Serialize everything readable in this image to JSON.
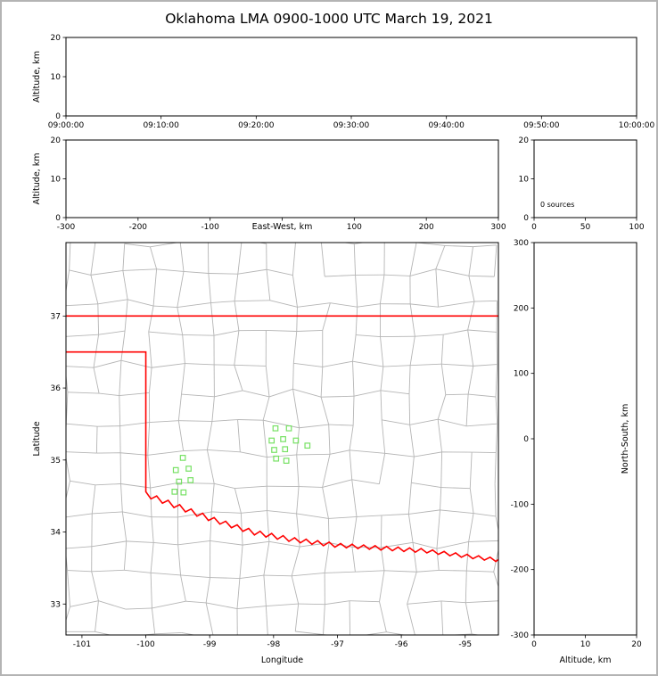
{
  "chart_data": {
    "type": "scatter",
    "title": "Oklahoma LMA 0900-1000 UTC March 19, 2021",
    "colors": {
      "axes": "#000000",
      "state_border": "#ff0000",
      "county_lines": "#b5b5b5",
      "stations": "#77e164"
    },
    "panels": {
      "time_height": {
        "ylabel": "Altitude, km",
        "xlim": [
          "09:00:00",
          "10:00:00"
        ],
        "ylim": [
          0,
          20
        ],
        "xticks": [
          "09:00:00",
          "09:10:00",
          "09:20:00",
          "09:30:00",
          "09:40:00",
          "09:50:00",
          "10:00:00"
        ],
        "yticks": [
          "0",
          "10",
          "20"
        ],
        "points": []
      },
      "ew_height": {
        "xlabel": "East-West, km",
        "ylabel": "Altitude, km",
        "xlim": [
          -300,
          300
        ],
        "ylim": [
          0,
          20
        ],
        "xticks": [
          -300,
          -200,
          -100,
          0,
          100,
          200,
          300
        ],
        "xtick_labels": [
          "-300",
          "-200",
          "-100",
          "",
          "100",
          "200",
          "300"
        ],
        "yticks": [
          "0",
          "10",
          "20"
        ],
        "points": []
      },
      "alt_histogram": {
        "annotation": "0 sources",
        "xlim": [
          0,
          100
        ],
        "ylim": [
          0,
          20
        ],
        "xticks": [
          "0",
          "50",
          "100"
        ],
        "yticks": [
          "0",
          "10",
          "20"
        ],
        "values": []
      },
      "map": {
        "xlabel": "Longitude",
        "ylabel": "Latitude",
        "lon_range": [
          -101.25,
          -94.48
        ],
        "lat_range": [
          32.57,
          38.02
        ],
        "xticks": [
          "-101",
          "-100",
          "-99",
          "-98",
          "-97",
          "-96",
          "-95"
        ],
        "yticks": [
          "33",
          "34",
          "35",
          "36",
          "37"
        ],
        "stations_lonlat": [
          [
            -97.97,
            35.44
          ],
          [
            -97.76,
            35.44
          ],
          [
            -98.03,
            35.27
          ],
          [
            -97.85,
            35.29
          ],
          [
            -97.65,
            35.27
          ],
          [
            -97.99,
            35.14
          ],
          [
            -97.82,
            35.15
          ],
          [
            -97.96,
            35.02
          ],
          [
            -97.8,
            34.99
          ],
          [
            -97.47,
            35.2
          ],
          [
            -99.42,
            35.03
          ],
          [
            -99.53,
            34.86
          ],
          [
            -99.33,
            34.88
          ],
          [
            -99.48,
            34.7
          ],
          [
            -99.3,
            34.72
          ],
          [
            -99.41,
            34.55
          ],
          [
            -99.55,
            34.56
          ]
        ],
        "state_border_paths": [
          [
            [
              -101.25,
              37.0
            ],
            [
              -94.48,
              37.0
            ]
          ],
          [
            [
              -101.25,
              36.5
            ],
            [
              -100.0,
              36.5
            ],
            [
              -100.0,
              34.56
            ],
            [
              -99.92,
              34.46
            ],
            [
              -99.83,
              34.5
            ],
            [
              -99.74,
              34.4
            ],
            [
              -99.65,
              34.44
            ],
            [
              -99.56,
              34.34
            ],
            [
              -99.47,
              34.38
            ],
            [
              -99.38,
              34.28
            ],
            [
              -99.29,
              34.32
            ],
            [
              -99.2,
              34.22
            ],
            [
              -99.11,
              34.26
            ],
            [
              -99.02,
              34.16
            ],
            [
              -98.93,
              34.2
            ],
            [
              -98.84,
              34.11
            ],
            [
              -98.75,
              34.15
            ],
            [
              -98.66,
              34.06
            ],
            [
              -98.57,
              34.1
            ],
            [
              -98.48,
              34.01
            ],
            [
              -98.39,
              34.05
            ],
            [
              -98.3,
              33.96
            ],
            [
              -98.21,
              34.01
            ],
            [
              -98.12,
              33.93
            ],
            [
              -98.03,
              33.98
            ],
            [
              -97.94,
              33.9
            ],
            [
              -97.85,
              33.95
            ],
            [
              -97.76,
              33.87
            ],
            [
              -97.67,
              33.92
            ],
            [
              -97.58,
              33.85
            ],
            [
              -97.49,
              33.9
            ],
            [
              -97.4,
              33.83
            ],
            [
              -97.31,
              33.88
            ],
            [
              -97.22,
              33.81
            ],
            [
              -97.13,
              33.86
            ],
            [
              -97.04,
              33.79
            ],
            [
              -96.95,
              33.84
            ],
            [
              -96.86,
              33.78
            ],
            [
              -96.77,
              33.83
            ],
            [
              -96.68,
              33.77
            ],
            [
              -96.59,
              33.82
            ],
            [
              -96.5,
              33.76
            ],
            [
              -96.41,
              33.81
            ],
            [
              -96.32,
              33.75
            ],
            [
              -96.23,
              33.8
            ],
            [
              -96.14,
              33.74
            ],
            [
              -96.05,
              33.79
            ],
            [
              -95.96,
              33.73
            ],
            [
              -95.87,
              33.78
            ],
            [
              -95.78,
              33.72
            ],
            [
              -95.69,
              33.77
            ],
            [
              -95.6,
              33.71
            ],
            [
              -95.51,
              33.75
            ],
            [
              -95.42,
              33.69
            ],
            [
              -95.33,
              33.73
            ],
            [
              -95.24,
              33.67
            ],
            [
              -95.15,
              33.71
            ],
            [
              -95.06,
              33.65
            ],
            [
              -94.97,
              33.69
            ],
            [
              -94.88,
              33.63
            ],
            [
              -94.79,
              33.67
            ],
            [
              -94.7,
              33.61
            ],
            [
              -94.61,
              33.65
            ],
            [
              -94.52,
              33.59
            ],
            [
              -94.48,
              33.62
            ]
          ]
        ]
      },
      "ns_height": {
        "xlabel": "Altitude, km",
        "ylabel": "North-South, km",
        "xlim": [
          0,
          20
        ],
        "ylim": [
          -300,
          300
        ],
        "xticks": [
          "0",
          "10",
          "20"
        ],
        "yticks_top_to_bottom": [
          "300",
          "200",
          "100",
          "0",
          "-100",
          "-200",
          "-300"
        ],
        "points": []
      }
    }
  }
}
